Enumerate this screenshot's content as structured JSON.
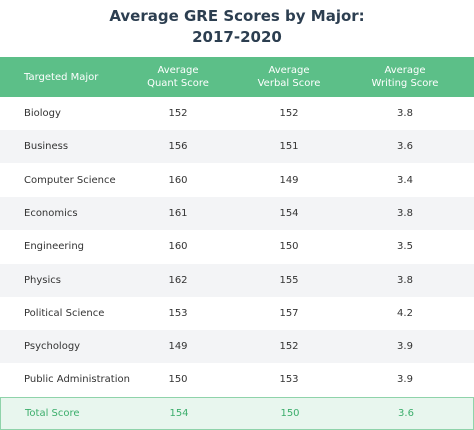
{
  "header": {
    "title": [
      "Average GRE Scores by Major:",
      "2017-2020"
    ]
  },
  "table": {
    "columns": [
      [
        "Targeted Major"
      ],
      [
        "Average",
        "Quant Score"
      ],
      [
        "Average",
        "Verbal Score"
      ],
      [
        "Average",
        "Writing Score"
      ]
    ],
    "rows": [
      [
        "Biology",
        152,
        152,
        3.8
      ],
      [
        "Business",
        156,
        151,
        3.6
      ],
      [
        "Computer Science",
        160,
        149,
        3.4
      ],
      [
        "Economics",
        161,
        154,
        3.8
      ],
      [
        "Engineering",
        160,
        150,
        3.5
      ],
      [
        "Physics",
        162,
        155,
        3.8
      ],
      [
        "Political Science",
        153,
        157,
        4.2
      ],
      [
        "Psychology",
        149,
        152,
        3.9
      ],
      [
        "Public Administration",
        150,
        153,
        3.9
      ]
    ],
    "total": [
      "Total Score",
      154,
      150,
      3.6
    ]
  }
}
